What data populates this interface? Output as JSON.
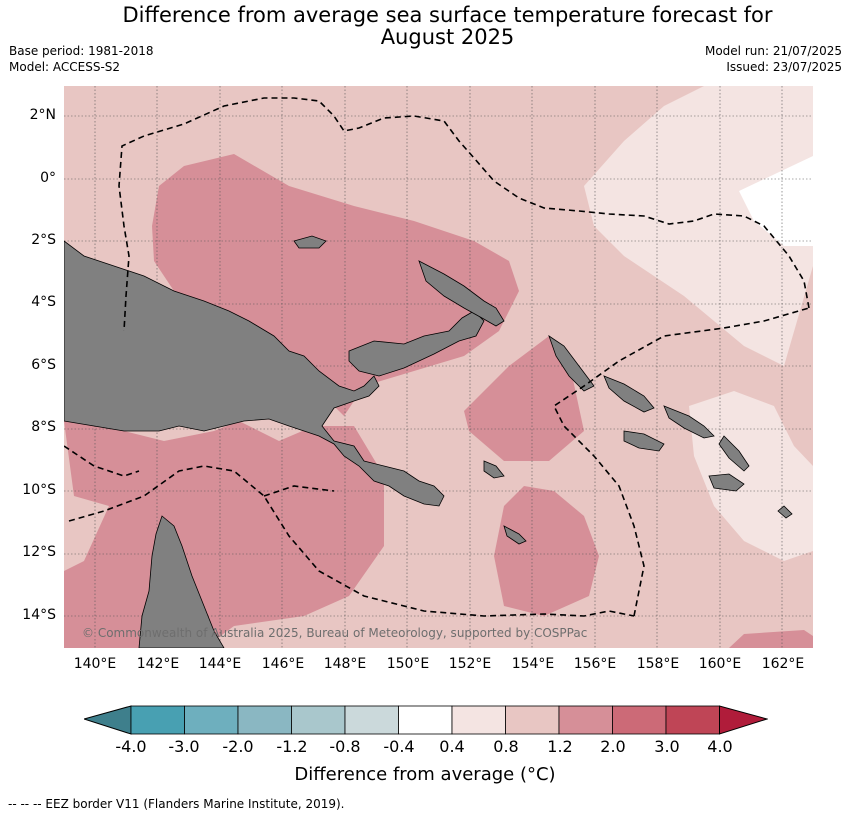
{
  "title_line1": "Difference from average sea surface temperature forecast for",
  "title_line2": "August 2025",
  "base_period": "Base period: 1981-2018",
  "model": "Model: ACCESS-S2",
  "model_run": "Model run: 21/07/2025",
  "issued": "Issued: 23/07/2025",
  "copyright": "© Commonwealth of Australia 2025, Bureau of Meteorology, supported by COSPPac",
  "lat_labels": [
    "2°N",
    "0°",
    "2°S",
    "4°S",
    "6°S",
    "8°S",
    "10°S",
    "12°S",
    "14°S"
  ],
  "lon_labels": [
    "140°E",
    "142°E",
    "144°E",
    "146°E",
    "148°E",
    "150°E",
    "152°E",
    "154°E",
    "156°E",
    "158°E",
    "160°E",
    "162°E"
  ],
  "colorbar": {
    "ticks": [
      "-4.0",
      "-3.0",
      "-2.0",
      "-1.2",
      "-0.8",
      "-0.4",
      "0.4",
      "0.8",
      "1.2",
      "2.0",
      "3.0",
      "4.0"
    ],
    "colors": [
      "#3e7f8c",
      "#48a0b2",
      "#6eafbe",
      "#8ab7c2",
      "#a9c7cc",
      "#cbd9db",
      "#ffffff",
      "#f4e4e2",
      "#e8c6c3",
      "#d68f98",
      "#cc6a77",
      "#bf4556",
      "#b01c3a"
    ],
    "title": "Difference from average (°C)"
  },
  "legend_eez": "--  --  -- EEZ border V11 (Flanders Marine Institute, 2019).",
  "map_colors": {
    "land": "#808080",
    "band_0_8_1_2": "#e8c6c3",
    "band_1_2_2_0": "#d68f98",
    "band_0_4_0_8": "#f4e4e2",
    "band_neg0_4_0_4": "#ffffff",
    "band_2_0_3_0": "#cc6a77"
  }
}
